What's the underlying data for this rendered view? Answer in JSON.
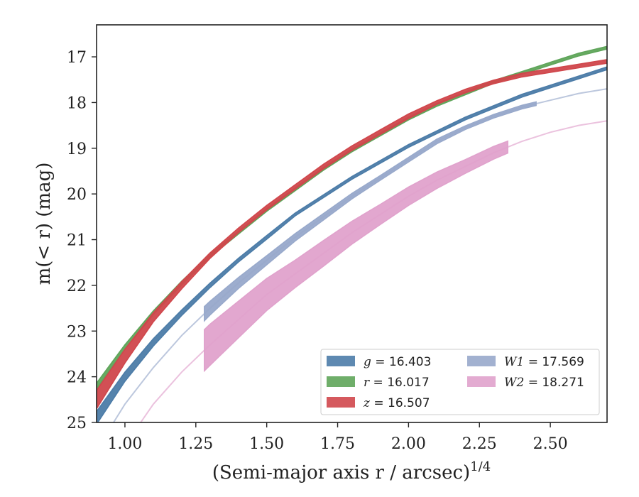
{
  "chart_data": {
    "type": "line",
    "title": "",
    "xlabel": "(Semi-major axis r / arcsec)",
    "xlabel_superscript": "1/4",
    "ylabel": "m(< r) (mag)",
    "xlim": [
      0.9,
      2.7
    ],
    "ylim": [
      25,
      16.3
    ],
    "y_inverted": true,
    "grid": false,
    "xticks": [
      "1.00",
      "1.25",
      "1.50",
      "1.75",
      "2.00",
      "2.25",
      "2.50"
    ],
    "xtick_values": [
      1.0,
      1.25,
      1.5,
      1.75,
      2.0,
      2.25,
      2.5
    ],
    "yticks": [
      "17",
      "18",
      "19",
      "20",
      "21",
      "22",
      "23",
      "24",
      "25"
    ],
    "ytick_values": [
      17,
      18,
      19,
      20,
      21,
      22,
      23,
      24,
      25
    ],
    "legend_position": "lower-right",
    "series": [
      {
        "name": "g = 16.403",
        "legend_var": "g",
        "legend_value": "16.403",
        "color": "#4c7ca8",
        "x": [
          0.9,
          1.0,
          1.1,
          1.2,
          1.3,
          1.4,
          1.5,
          1.6,
          1.7,
          1.8,
          1.9,
          2.0,
          2.1,
          2.2,
          2.3,
          2.4,
          2.5,
          2.6,
          2.65,
          2.7
        ],
        "y": [
          24.9,
          24.0,
          23.25,
          22.6,
          22.0,
          21.45,
          20.95,
          20.45,
          20.05,
          19.65,
          19.3,
          18.95,
          18.65,
          18.35,
          18.1,
          17.85,
          17.65,
          17.45,
          17.35,
          17.25
        ],
        "band": [
          0.14,
          0.1,
          0.08,
          0.06,
          0.05,
          0.04,
          0.04,
          0.03,
          0.03,
          0.03,
          0.03,
          0.03,
          0.03,
          0.03,
          0.03,
          0.03,
          0.03,
          0.03,
          0.03,
          0.03
        ]
      },
      {
        "name": "r = 16.017",
        "legend_var": "r",
        "legend_value": "16.017",
        "color": "#5fa55a",
        "x": [
          0.9,
          1.0,
          1.1,
          1.2,
          1.3,
          1.4,
          1.5,
          1.6,
          1.7,
          1.8,
          1.9,
          2.0,
          2.1,
          2.2,
          2.3,
          2.4,
          2.5,
          2.6,
          2.7
        ],
        "y": [
          24.2,
          23.35,
          22.6,
          21.95,
          21.35,
          20.85,
          20.35,
          19.9,
          19.45,
          19.05,
          18.7,
          18.35,
          18.05,
          17.8,
          17.55,
          17.35,
          17.15,
          16.95,
          16.8
        ],
        "band": [
          0.06,
          0.05,
          0.04,
          0.04,
          0.03,
          0.03,
          0.03,
          0.03,
          0.03,
          0.03,
          0.03,
          0.03,
          0.03,
          0.03,
          0.03,
          0.03,
          0.03,
          0.03,
          0.03
        ]
      },
      {
        "name": "z = 16.507",
        "legend_var": "z",
        "legend_value": "16.507",
        "color": "#d0474c",
        "x": [
          0.9,
          1.0,
          1.1,
          1.2,
          1.3,
          1.4,
          1.5,
          1.6,
          1.7,
          1.8,
          1.9,
          2.0,
          2.1,
          2.2,
          2.3,
          2.4,
          2.5,
          2.6,
          2.7
        ],
        "y": [
          24.5,
          23.55,
          22.7,
          22.0,
          21.35,
          20.8,
          20.3,
          19.85,
          19.4,
          19.0,
          18.65,
          18.3,
          18.0,
          17.75,
          17.55,
          17.4,
          17.3,
          17.2,
          17.1
        ],
        "band": [
          0.2,
          0.15,
          0.1,
          0.08,
          0.06,
          0.05,
          0.05,
          0.05,
          0.05,
          0.05,
          0.05,
          0.05,
          0.04,
          0.04,
          0.04,
          0.04,
          0.04,
          0.04,
          0.04
        ]
      },
      {
        "name": "W1 = 17.569",
        "legend_var": "W1",
        "legend_value": "17.569",
        "color": "#98a9cb",
        "x": [
          0.9,
          1.0,
          1.1,
          1.2,
          1.3,
          1.4,
          1.5,
          1.6,
          1.7,
          1.8,
          1.9,
          2.0,
          2.1,
          2.2,
          2.3,
          2.4,
          2.5,
          2.6,
          2.7
        ],
        "y": [
          25.6,
          24.6,
          23.8,
          23.1,
          22.5,
          21.95,
          21.45,
          20.95,
          20.5,
          20.05,
          19.65,
          19.25,
          18.85,
          18.55,
          18.3,
          18.1,
          17.95,
          17.8,
          17.7
        ],
        "band": [
          0.25,
          0.22,
          0.2,
          0.18,
          0.15,
          0.12,
          0.1,
          0.08,
          0.07,
          0.06,
          0.05,
          0.05,
          0.05,
          0.04,
          0.04,
          0.04,
          0.04,
          0.04,
          0.04
        ],
        "measured_range": [
          1.28,
          2.45
        ]
      },
      {
        "name": "W2 = 18.271",
        "legend_var": "W2",
        "legend_value": "18.271",
        "color": "#e0a2cc",
        "x": [
          0.9,
          1.0,
          1.1,
          1.2,
          1.3,
          1.4,
          1.5,
          1.6,
          1.7,
          1.8,
          1.9,
          2.0,
          2.1,
          2.2,
          2.3,
          2.4,
          2.5,
          2.6,
          2.7
        ],
        "y": [
          26.6,
          25.5,
          24.6,
          23.9,
          23.3,
          22.75,
          22.2,
          21.75,
          21.3,
          20.85,
          20.45,
          20.05,
          19.7,
          19.4,
          19.1,
          18.85,
          18.65,
          18.5,
          18.4
        ],
        "band": [
          0.45,
          0.45,
          0.45,
          0.45,
          0.45,
          0.4,
          0.35,
          0.3,
          0.28,
          0.25,
          0.22,
          0.2,
          0.18,
          0.15,
          0.14,
          0.12,
          0.1,
          0.1,
          0.1
        ],
        "measured_range": [
          1.28,
          2.35
        ]
      }
    ]
  }
}
